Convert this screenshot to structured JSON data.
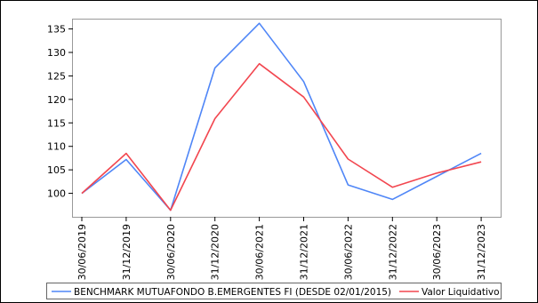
{
  "chart_data": {
    "type": "line",
    "title": "",
    "xlabel": "",
    "ylabel": "",
    "categories": [
      "30/06/2019",
      "31/12/2019",
      "30/06/2020",
      "31/12/2020",
      "30/06/2021",
      "31/12/2021",
      "30/06/2022",
      "31/12/2022",
      "30/06/2023",
      "31/12/2023"
    ],
    "ylim": [
      95,
      137
    ],
    "yticks": [
      100,
      105,
      110,
      115,
      120,
      125,
      130,
      135
    ],
    "grid": false,
    "legend_position": "bottom",
    "series": [
      {
        "name": "BENCHMARK MUTUAFONDO B.EMERGENTES FI (DESDE 02/01/2015)",
        "color": "#4f86f7",
        "values": [
          100.0,
          107.2,
          96.4,
          126.7,
          136.2,
          123.8,
          101.8,
          98.7,
          103.6,
          108.5
        ]
      },
      {
        "name": "Valor Liquidativo",
        "color": "#f2464f",
        "values": [
          100.0,
          108.5,
          96.4,
          115.9,
          127.6,
          120.5,
          107.3,
          101.3,
          104.3,
          106.7
        ]
      }
    ]
  }
}
